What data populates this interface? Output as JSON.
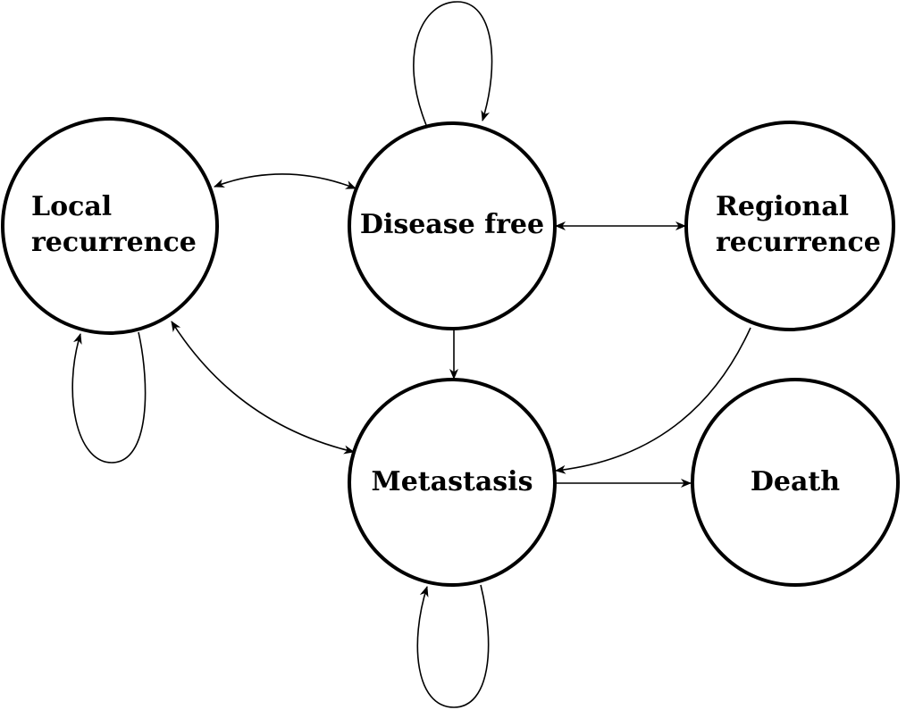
{
  "states": {
    "disease_free": {
      "label": "Disease free"
    },
    "local_recurrence": {
      "line1": "Local",
      "line2": "recurrence"
    },
    "regional_recurrence": {
      "line1": "Regional",
      "line2": "recurrence"
    },
    "metastasis": {
      "label": "Metastasis"
    },
    "death": {
      "label": "Death"
    }
  },
  "transitions": [
    {
      "from": "Disease free",
      "to": "Disease free"
    },
    {
      "from": "Disease free",
      "to": "Local recurrence"
    },
    {
      "from": "Local recurrence",
      "to": "Disease free"
    },
    {
      "from": "Disease free",
      "to": "Regional recurrence"
    },
    {
      "from": "Regional recurrence",
      "to": "Disease free"
    },
    {
      "from": "Disease free",
      "to": "Metastasis"
    },
    {
      "from": "Local recurrence",
      "to": "Local recurrence"
    },
    {
      "from": "Local recurrence",
      "to": "Metastasis"
    },
    {
      "from": "Metastasis",
      "to": "Local recurrence"
    },
    {
      "from": "Regional recurrence",
      "to": "Metastasis"
    },
    {
      "from": "Metastasis",
      "to": "Metastasis"
    },
    {
      "from": "Metastasis",
      "to": "Death"
    }
  ],
  "colors": {
    "stroke": "#000000",
    "background": "#ffffff"
  }
}
